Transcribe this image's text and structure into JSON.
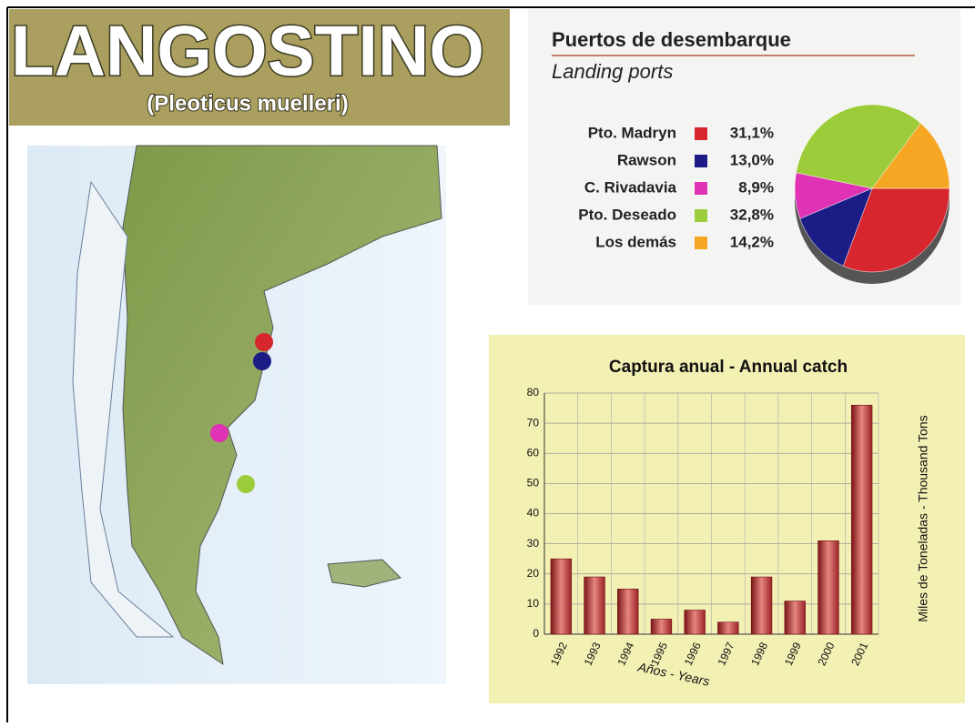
{
  "banner": {
    "title": "LANGOSTINO",
    "subtitle": "(Pleoticus muelleri)"
  },
  "chart_data": [
    {
      "type": "pie",
      "title": "Puertos de desembarque",
      "subtitle": "Landing ports",
      "categories": [
        "Pto. Madryn",
        "Rawson",
        "C. Rivadavia",
        "Pto. Deseado",
        "Los demás"
      ],
      "values": [
        31.1,
        13.0,
        8.9,
        32.8,
        14.2
      ],
      "value_labels": [
        "31,1%",
        "13,0%",
        "8,9%",
        "32,8%",
        "14,2%"
      ],
      "colors": [
        "#d8262e",
        "#1c1c86",
        "#e032b4",
        "#9ccc3a",
        "#f5a623"
      ]
    },
    {
      "type": "bar",
      "title": "Captura anual - Annual catch",
      "x_label": "Años - Years",
      "y_label": "Miles de Toneladas - Thousand Tons",
      "categories": [
        "1992",
        "1993",
        "1994",
        "1995",
        "1996",
        "1997",
        "1998",
        "1999",
        "2000",
        "2001"
      ],
      "values": [
        25,
        19,
        15,
        5,
        8,
        4,
        19,
        11,
        31,
        76
      ],
      "color": "#c0393b",
      "ylim": [
        0,
        80
      ],
      "yticks": [
        0,
        10,
        20,
        30,
        40,
        50,
        60,
        70,
        80
      ],
      "grid": true
    }
  ]
}
